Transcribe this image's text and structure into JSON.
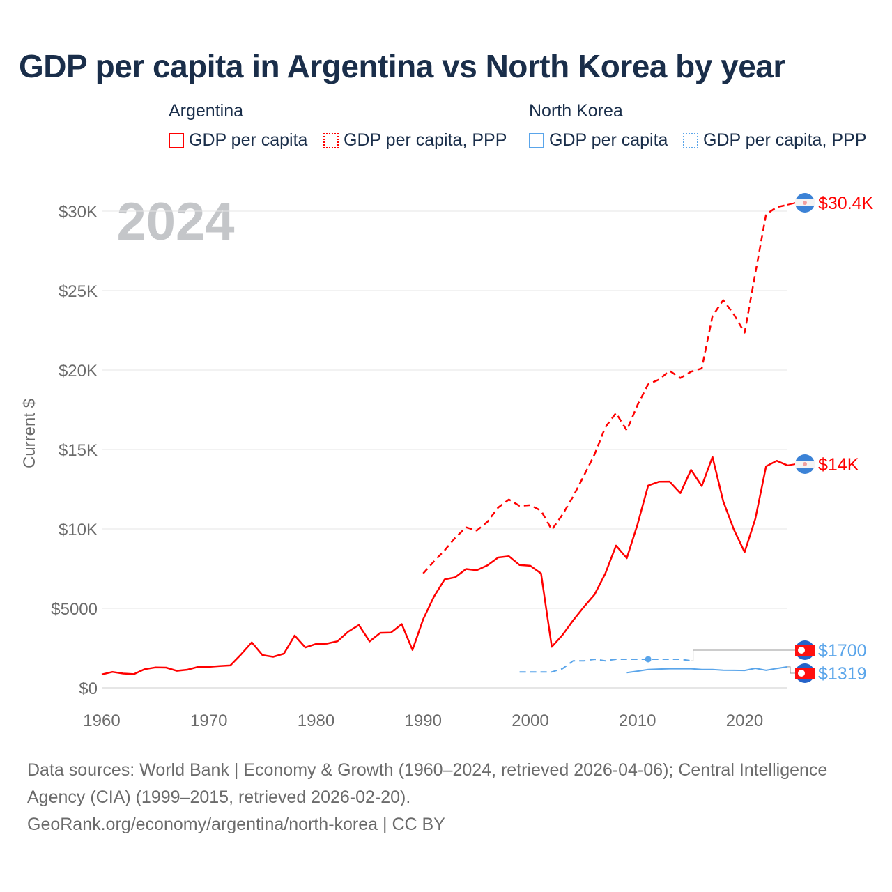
{
  "title": "GDP per capita in Argentina vs North Korea by year",
  "legend": {
    "groups": [
      {
        "name": "Argentina",
        "color": "#ff0000",
        "items": [
          "GDP per capita",
          "GDP per capita, PPP"
        ]
      },
      {
        "name": "North Korea",
        "color": "#5aa5ea",
        "items": [
          "GDP per capita",
          "GDP per capita, PPP"
        ]
      }
    ]
  },
  "year_watermark": "2024",
  "footer": {
    "sources": "Data sources: World Bank | Economy & Growth (1960–2024, retrieved 2026-04-06); Central Intelligence Agency (CIA) (1999–2015, retrieved 2026-02-20).",
    "credit": "GeoRank.org/economy/argentina/north-korea | CC BY"
  },
  "chart_data": {
    "type": "line",
    "title": "GDP per capita in Argentina vs North Korea by year",
    "ylabel": "Current $",
    "xlabel": "",
    "xlim": [
      1960,
      2024
    ],
    "ylim": [
      0,
      30000
    ],
    "x_ticks": [
      1960,
      1970,
      1980,
      1990,
      2000,
      2010,
      2020
    ],
    "y_ticks": [
      0,
      5000,
      10000,
      15000,
      20000,
      25000,
      30000
    ],
    "y_tick_labels": [
      "$0",
      "$5000",
      "$10K",
      "$15K",
      "$20K",
      "$25K",
      "$30K"
    ],
    "grid": true,
    "series": [
      {
        "name": "Argentina GDP per capita",
        "color": "#ff0000",
        "dash": "solid",
        "end_label": "$14K",
        "start": 1960,
        "values": [
          842,
          1000,
          900,
          860,
          1170,
          1280,
          1270,
          1070,
          1140,
          1320,
          1320,
          1370,
          1410,
          2100,
          2860,
          2060,
          1950,
          2150,
          3290,
          2540,
          2760,
          2780,
          2930,
          3530,
          3950,
          2920,
          3460,
          3480,
          4010,
          2380,
          4320,
          5730,
          6820,
          6960,
          7480,
          7400,
          7710,
          8200,
          8280,
          7730,
          7680,
          7200,
          2580,
          3320,
          4250,
          5090,
          5880,
          7190,
          8950,
          8160,
          10280,
          12730,
          12970,
          12980,
          12250,
          13720,
          12700,
          14530,
          11740,
          9960,
          8540,
          10640,
          13940,
          14290,
          14000
        ]
      },
      {
        "name": "Argentina GDP per capita, PPP",
        "color": "#ff0000",
        "dash": "dashed",
        "end_label": "$30.4K",
        "start": 1990,
        "values": [
          7200,
          7950,
          8650,
          9450,
          10100,
          9900,
          10450,
          11350,
          11850,
          11450,
          11500,
          11150,
          9950,
          10900,
          12050,
          13350,
          14700,
          16400,
          17300,
          16200,
          17800,
          19100,
          19400,
          19950,
          19500,
          19900,
          20100,
          23400,
          24400,
          23500,
          22350,
          26100,
          29800,
          30250,
          30400
        ]
      },
      {
        "name": "North Korea GDP per capita",
        "color": "#5aa5ea",
        "dash": "solid",
        "end_label": "$1319",
        "start": 2009,
        "values": [
          950,
          1050,
          1150,
          1180,
          1200,
          1200,
          1200,
          1150,
          1150,
          1110,
          1100,
          1090,
          1230,
          1100,
          1220,
          1319
        ]
      },
      {
        "name": "North Korea GDP per capita, PPP",
        "color": "#5aa5ea",
        "dash": "dashed",
        "end_label": "$1700",
        "start": 1999,
        "values": [
          1000,
          1000,
          1000,
          1000,
          1200,
          1700,
          1700,
          1800,
          1700,
          1800,
          1800,
          1800,
          1800,
          1800,
          1800,
          1800,
          1700
        ]
      }
    ]
  }
}
